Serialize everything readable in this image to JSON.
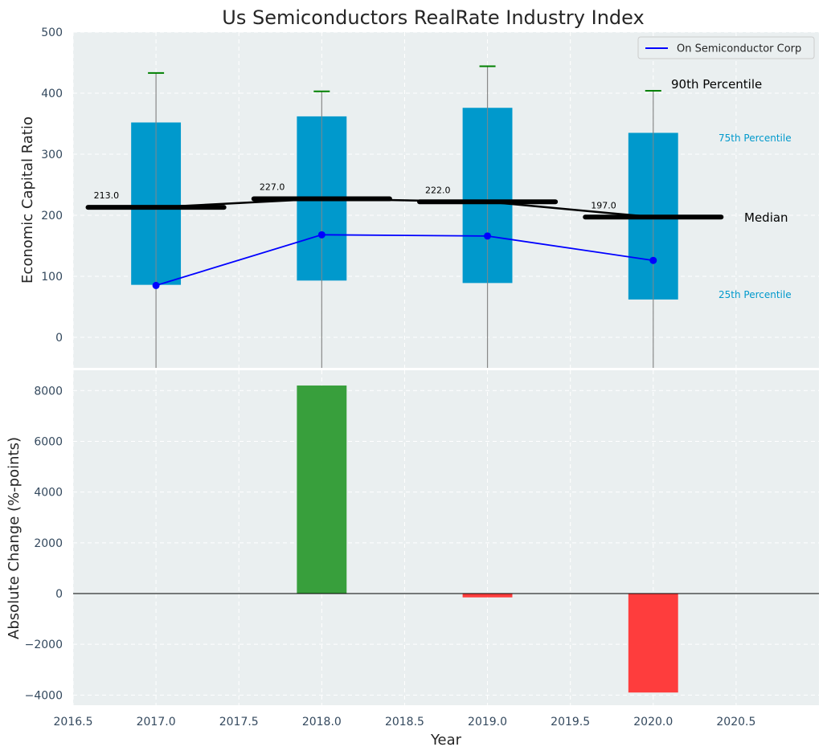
{
  "chart_data": [
    {
      "type": "box",
      "title": "Us Semiconductors RealRate Industry Index",
      "xlabel": "",
      "ylabel": "Economic Capital Ratio",
      "ylim": [
        -50,
        500
      ],
      "yticks": [
        0,
        100,
        200,
        300,
        400,
        500
      ],
      "grid": true,
      "legend": {
        "placement": "top-right",
        "entries": [
          "On Semiconductor Corp"
        ]
      },
      "x": [
        2017,
        2018,
        2019,
        2020
      ],
      "percentiles": {
        "p10": [
          -50,
          -50,
          -50,
          -50
        ],
        "p25": [
          86,
          93,
          89,
          62
        ],
        "median": [
          213,
          227,
          222,
          197
        ],
        "p75": [
          352,
          362,
          376,
          335
        ],
        "p90": [
          433,
          403,
          444,
          404
        ]
      },
      "median_labels": [
        "213.0",
        "227.0",
        "222.0",
        "197.0"
      ],
      "series": [
        {
          "name": "On Semiconductor Corp",
          "color": "#0000ff",
          "values": [
            85,
            168,
            166,
            126
          ]
        }
      ],
      "annotations": {
        "p90": "90th Percentile",
        "p75": "75th Percentile",
        "median": "Median",
        "p25": "25th Percentile"
      },
      "colors": {
        "box": "#0099cc",
        "median": "#000000",
        "whisker_cap": "#008000",
        "background": "#eaeff0"
      }
    },
    {
      "type": "bar",
      "xlabel": "Year",
      "ylabel": "Absolute Change (%-points)",
      "xlim": [
        2016.5,
        2021.0
      ],
      "xticks": [
        2016.5,
        2017.0,
        2017.5,
        2018.0,
        2018.5,
        2019.0,
        2019.5,
        2020.0,
        2020.5
      ],
      "xtick_labels": [
        "2016.5",
        "2017.0",
        "2017.5",
        "2018.0",
        "2018.5",
        "2019.0",
        "2019.5",
        "2020.0",
        "2020.5"
      ],
      "ylim": [
        -4400,
        8800
      ],
      "yticks": [
        -4000,
        -2000,
        0,
        2000,
        4000,
        6000,
        8000
      ],
      "grid": true,
      "x": [
        2018,
        2019,
        2020
      ],
      "values": [
        8200,
        -150,
        -3900
      ],
      "colors": {
        "positive": "#2e9a32",
        "negative": "#ff3333",
        "zero_line": "#000000"
      }
    }
  ]
}
